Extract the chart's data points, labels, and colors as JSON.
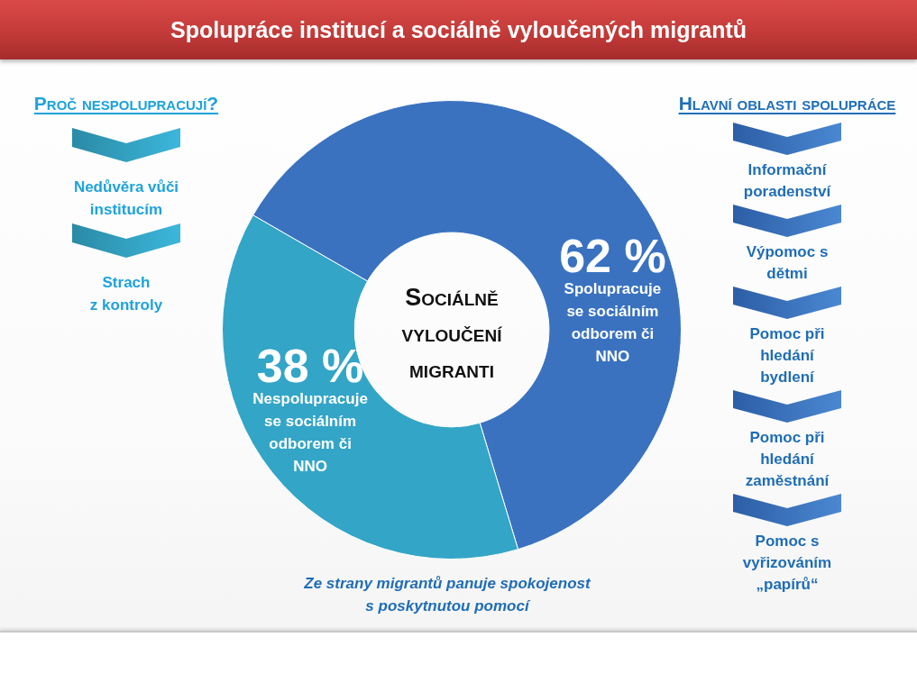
{
  "chart_data": [
    {
      "type": "donut",
      "title": "Spolupráce institucí a sociálně vyloučených migrantů",
      "categories": [
        "Spolupracuje\nse sociálním\nodborem či\nNNO",
        "Nespolupracuje\nse sociálním\nodborem či\nNNO"
      ],
      "values": [
        62,
        38
      ],
      "colors": [
        "#3a72c0",
        "#33a5c7"
      ],
      "value_labels": [
        "62 %",
        "38 %"
      ],
      "annotations": [
        "Sociálně\nvyloučení\nmigranti",
        "Ze strany migrantů panuje spokojenost\ns poskytnutou pomocí"
      ]
    },
    {
      "type": "other",
      "title": "Proč nespolupracují?",
      "annotations": [
        "Nedůvěra vůči\ninstitucím",
        "Strach\nz kontroly"
      ]
    },
    {
      "type": "other",
      "title": "Hlavní oblasti spolupráce",
      "annotations": [
        "Informační\nporadenství",
        "Výpomoc s\ndětmi",
        "Pomoc při\nhledání\nbydlení",
        "Pomoc při\nhledání\nzaměstnání",
        "Pomoc s\nvyřizováním\n„papírů“"
      ]
    }
  ]
}
